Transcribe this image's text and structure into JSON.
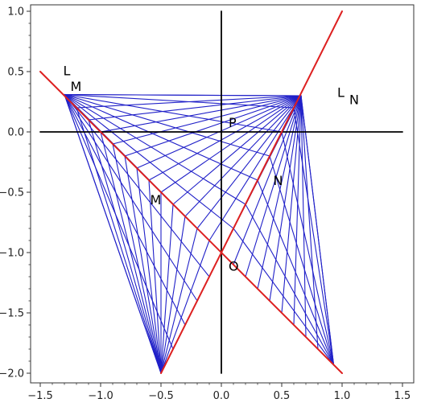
{
  "chart_data": {
    "type": "line",
    "title": "",
    "xlabel": "",
    "ylabel": "",
    "xlim": [
      -1.55,
      1.55
    ],
    "ylim": [
      -2.05,
      1.02
    ],
    "x_ticks": [
      -1.5,
      -1.0,
      -0.5,
      0.0,
      0.5,
      1.0,
      1.5
    ],
    "x_tick_labels": [
      "−1.5",
      "−1.0",
      "−0.5",
      "0.0",
      "0.5",
      "1.0",
      "1.5"
    ],
    "y_ticks": [
      1.0,
      0.5,
      0.0,
      -0.5,
      -1.0,
      -1.5,
      -2.0
    ],
    "y_tick_labels": [
      "1.0",
      "0.5",
      "0.0",
      "−0.5",
      "−1.0",
      "−1.5",
      "−2.0"
    ],
    "grid": false,
    "colors": {
      "axes": "#000000",
      "red_lines": "#dd2020",
      "blue_lines": "#2020c8",
      "frame": "#333333"
    },
    "axis_lines": [
      {
        "from": [
          -1.5,
          0.0
        ],
        "to": [
          1.5,
          0.0
        ]
      },
      {
        "from": [
          0.0,
          1.0
        ],
        "to": [
          0.0,
          -2.0
        ]
      }
    ],
    "red_lines": [
      {
        "from": [
          -1.5,
          0.5
        ],
        "to": [
          1.0,
          -2.0
        ]
      },
      {
        "from": [
          -0.5,
          -2.0
        ],
        "to": [
          1.0,
          1.0
        ]
      }
    ],
    "blue_fans": [
      {
        "apex": [
          -1.3,
          0.31
        ],
        "targets": [
          [
            -0.5,
            -2.0
          ],
          [
            -0.4,
            -1.8
          ],
          [
            -0.3,
            -1.6
          ],
          [
            -0.2,
            -1.4
          ],
          [
            -0.1,
            -1.2
          ],
          [
            0.0,
            -1.0
          ],
          [
            0.1,
            -0.8
          ],
          [
            0.2,
            -0.6
          ],
          [
            0.3,
            -0.4
          ],
          [
            0.4,
            -0.2
          ],
          [
            0.5,
            0.0
          ],
          [
            0.6,
            0.2
          ],
          [
            0.66,
            0.3
          ]
        ]
      },
      {
        "apex": [
          -0.5,
          -2.0
        ],
        "targets": [
          [
            -1.3,
            0.31
          ],
          [
            -1.2,
            0.2
          ],
          [
            -1.1,
            0.1
          ],
          [
            -1.0,
            0.0
          ],
          [
            -0.9,
            -0.1
          ],
          [
            -0.8,
            -0.2
          ],
          [
            -0.7,
            -0.3
          ],
          [
            -0.6,
            -0.4
          ],
          [
            -0.5,
            -0.5
          ],
          [
            -0.4,
            -0.6
          ],
          [
            -0.3,
            -0.7
          ],
          [
            -0.2,
            -0.8
          ],
          [
            -0.1,
            -0.9
          ],
          [
            0.0,
            -1.0
          ]
        ]
      },
      {
        "apex": [
          0.66,
          0.3
        ],
        "targets": [
          [
            -1.3,
            0.31
          ],
          [
            -1.2,
            0.2
          ],
          [
            -1.1,
            0.1
          ],
          [
            -1.0,
            0.0
          ],
          [
            -0.9,
            -0.1
          ],
          [
            -0.8,
            -0.2
          ],
          [
            -0.7,
            -0.3
          ],
          [
            -0.6,
            -0.4
          ],
          [
            -0.5,
            -0.5
          ],
          [
            -0.4,
            -0.6
          ],
          [
            -0.3,
            -0.7
          ],
          [
            -0.2,
            -0.8
          ],
          [
            -0.1,
            -0.9
          ],
          [
            0.0,
            -1.0
          ],
          [
            0.1,
            -1.1
          ],
          [
            0.2,
            -1.2
          ],
          [
            0.3,
            -1.3
          ],
          [
            0.4,
            -1.4
          ],
          [
            0.5,
            -1.5
          ],
          [
            0.6,
            -1.6
          ],
          [
            0.7,
            -1.7
          ],
          [
            0.8,
            -1.8
          ],
          [
            0.93,
            -1.93
          ]
        ]
      },
      {
        "apex": [
          0.93,
          -1.93
        ],
        "targets": [
          [
            0.0,
            -1.0
          ],
          [
            0.1,
            -0.8
          ],
          [
            0.2,
            -0.6
          ],
          [
            0.3,
            -0.4
          ],
          [
            0.4,
            -0.2
          ],
          [
            0.5,
            0.0
          ],
          [
            0.6,
            0.2
          ],
          [
            0.66,
            0.3
          ]
        ]
      }
    ],
    "annotations": [
      {
        "text": "L",
        "x": -1.31,
        "y": 0.47
      },
      {
        "text": "M",
        "x": -1.25,
        "y": 0.34
      },
      {
        "text": "P",
        "x": 0.06,
        "y": 0.04
      },
      {
        "text": "M",
        "x": -0.59,
        "y": -0.6
      },
      {
        "text": "N",
        "x": 0.43,
        "y": -0.44
      },
      {
        "text": "O",
        "x": 0.06,
        "y": -1.15
      },
      {
        "text": "L",
        "x": 0.96,
        "y": 0.29
      },
      {
        "text": "N",
        "x": 1.06,
        "y": 0.23
      }
    ]
  }
}
